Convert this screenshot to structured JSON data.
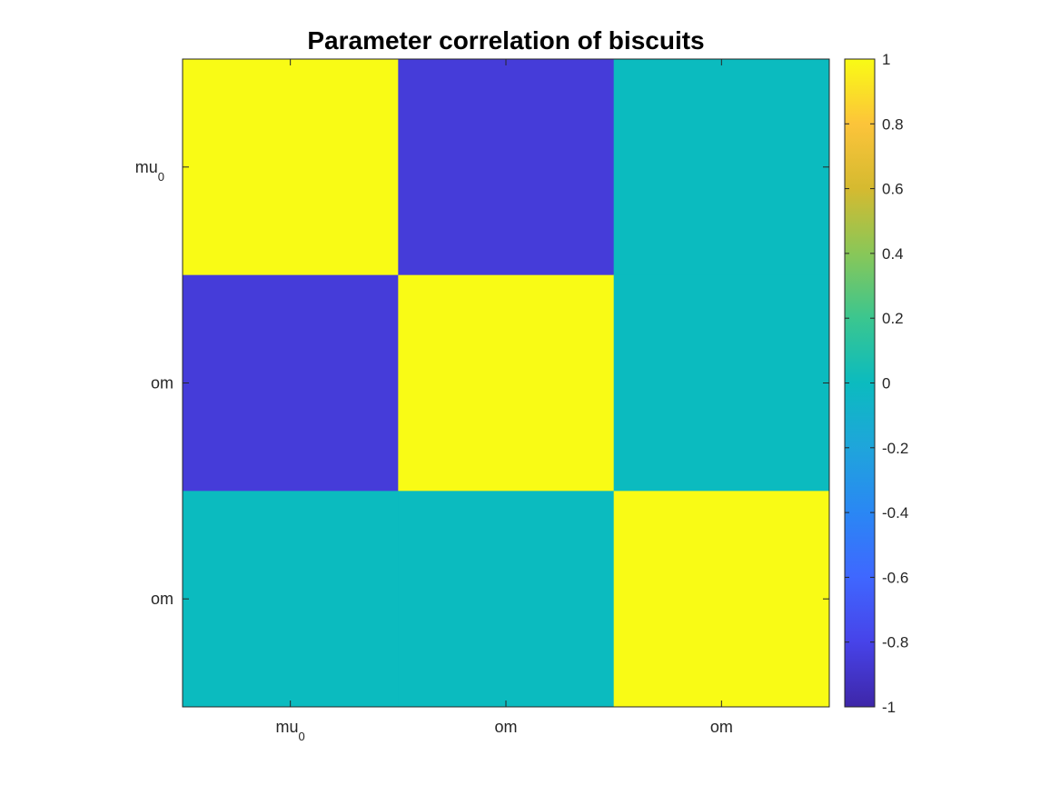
{
  "chart_data": {
    "type": "heatmap",
    "title": "Parameter correlation of biscuits",
    "row_labels": [
      {
        "base": "mu",
        "sub": "0"
      },
      {
        "base": "om",
        "sub": ""
      },
      {
        "base": "om",
        "sub": ""
      }
    ],
    "col_labels": [
      {
        "base": "mu",
        "sub": "0"
      },
      {
        "base": "om",
        "sub": ""
      },
      {
        "base": "om",
        "sub": ""
      }
    ],
    "values": [
      [
        1,
        -0.85,
        0
      ],
      [
        -0.85,
        1,
        0
      ],
      [
        0,
        0,
        1
      ]
    ],
    "colorbar": {
      "range": [
        -1,
        1
      ],
      "ticks": [
        1,
        0.8,
        0.6,
        0.4,
        0.2,
        0,
        -0.2,
        -0.4,
        -0.6,
        -0.8,
        -1
      ],
      "tick_labels": [
        "1",
        "0.8",
        "0.6",
        "0.4",
        "0.2",
        "0",
        "-0.2",
        "-0.4",
        "-0.6",
        "-0.8",
        "-1"
      ],
      "colormap": "parula"
    },
    "grid": false
  }
}
